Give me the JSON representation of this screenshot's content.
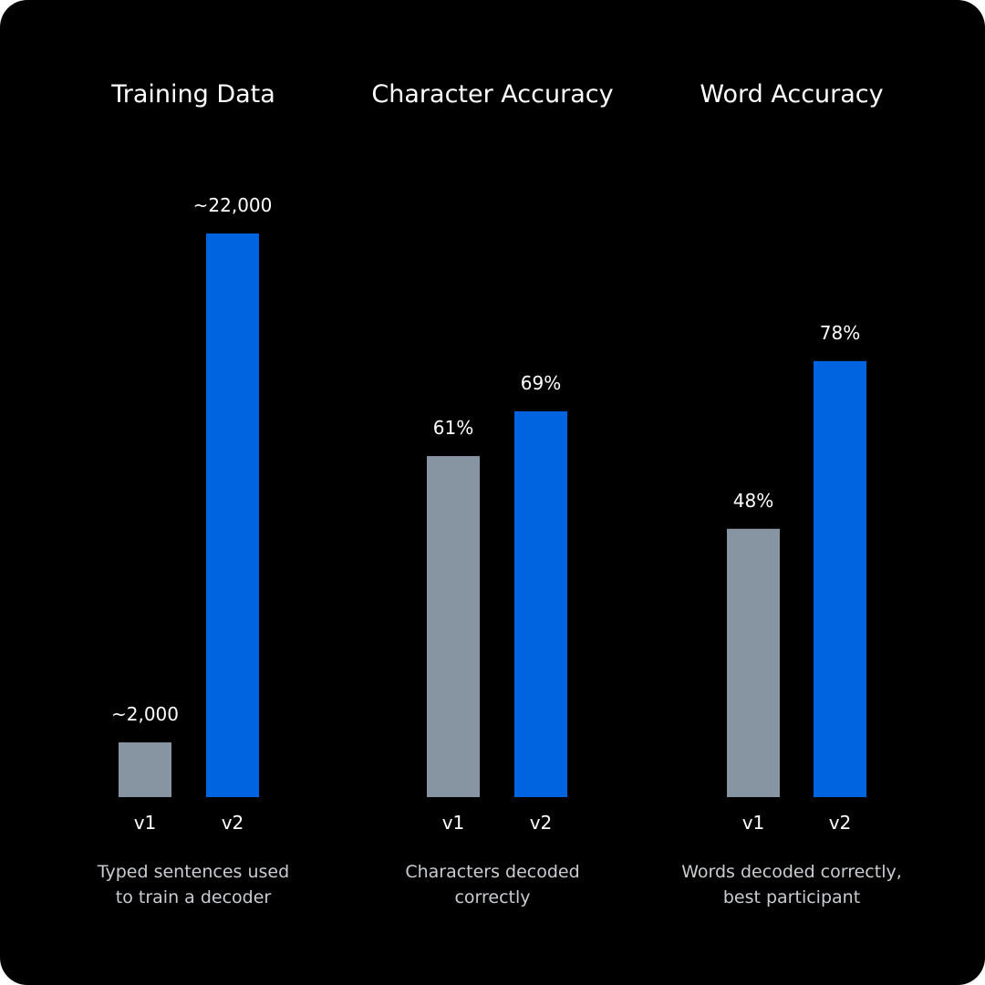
{
  "colors": {
    "background": "#000000",
    "v1": "#8795a3",
    "v2": "#0064e0",
    "text": "#ffffff",
    "caption": "#c9ccd1"
  },
  "chart_data": [
    {
      "type": "bar",
      "title": "Training Data",
      "categories": [
        "v1",
        "v2"
      ],
      "values": [
        2000,
        22000
      ],
      "value_labels": [
        "~2,000",
        "~22,000"
      ],
      "caption": [
        "Typed sentences used",
        "to train a decoder"
      ],
      "ylim": [
        0,
        24000
      ],
      "grid": false
    },
    {
      "type": "bar",
      "title": "Character Accuracy",
      "categories": [
        "v1",
        "v2"
      ],
      "values": [
        61,
        69
      ],
      "value_labels": [
        "61%",
        "69%"
      ],
      "caption": [
        "Characters decoded",
        "correctly"
      ],
      "ylim": [
        0,
        100
      ],
      "grid": false
    },
    {
      "type": "bar",
      "title": "Word Accuracy",
      "categories": [
        "v1",
        "v2"
      ],
      "values": [
        48,
        78
      ],
      "value_labels": [
        "48%",
        "78%"
      ],
      "caption": [
        "Words decoded correctly,",
        "best participant"
      ],
      "ylim": [
        0,
        100
      ],
      "grid": false
    }
  ]
}
